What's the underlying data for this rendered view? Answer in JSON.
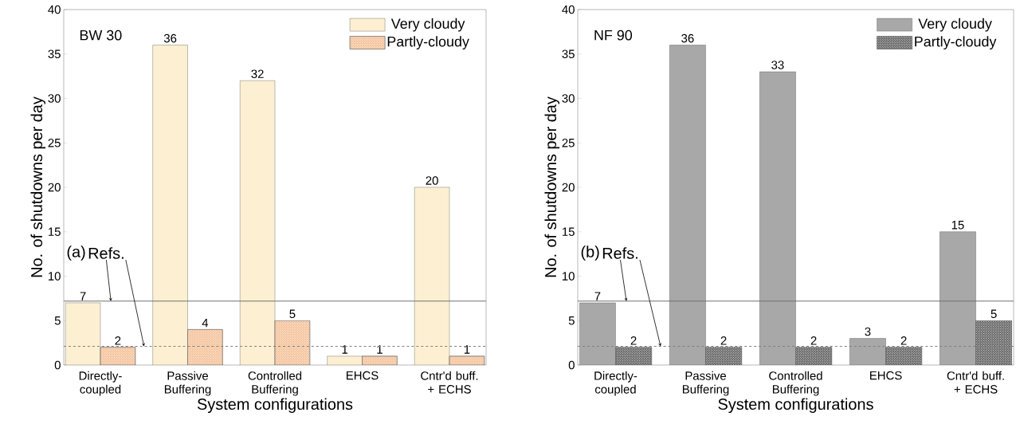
{
  "chart_data": [
    {
      "type": "bar",
      "xlabel": "System configurations",
      "ylabel": "No. of shutdowns per day",
      "categories": [
        "Directly-coupled",
        "Passive Buffering",
        "Controlled Buffering",
        "EHCS",
        "Cntr'd buff. + ECHS"
      ],
      "series": [
        {
          "name": "Very cloudy",
          "color": "#fdf0d2",
          "values": [
            7,
            36,
            32,
            1,
            20
          ]
        },
        {
          "name": "Partly-cloudy",
          "color": "#f5c6a0",
          "values": [
            2,
            4,
            5,
            1,
            1
          ]
        }
      ],
      "ylim": [
        0,
        40
      ],
      "yticks": [
        0,
        5,
        10,
        15,
        20,
        25,
        30,
        35,
        40
      ],
      "data_labels": true,
      "legend": "top right",
      "ref_lines": [
        {
          "axis": "y",
          "value": 7.2,
          "color": "#707070",
          "line_style": "solid"
        },
        {
          "axis": "y",
          "value": 2.1,
          "color": "#808080",
          "line_style": "dashed"
        }
      ],
      "annotations": [
        "BW 30",
        "(a)",
        {
          "text": "Refs.",
          "y": 7.2
        }
      ]
    },
    {
      "type": "bar",
      "xlabel": "System configurations",
      "ylabel": "No. of shutdowns per day",
      "categories": [
        "Directly-coupled",
        "Passive Buffering",
        "Controlled Buffering",
        "EHCS",
        "Cntr'd buff. + ECHS"
      ],
      "series": [
        {
          "name": "Very cloudy",
          "color": "#a8a8a8",
          "values": [
            7,
            36,
            33,
            3,
            15
          ]
        },
        {
          "name": "Partly-cloudy",
          "color": "#6e6e6e",
          "values": [
            2,
            2,
            2,
            2,
            5
          ]
        }
      ],
      "ylim": [
        0,
        40
      ],
      "yticks": [
        0,
        5,
        10,
        15,
        20,
        25,
        30,
        35,
        40
      ],
      "data_labels": true,
      "legend": "top right",
      "ref_lines": [
        {
          "axis": "y",
          "value": 7.2,
          "color": "#707070",
          "line_style": "solid"
        },
        {
          "axis": "y",
          "value": 2.1,
          "color": "#808080",
          "line_style": "dashed"
        }
      ],
      "annotations": [
        "NF 90",
        "(b)",
        {
          "text": "Refs.",
          "y": 7.2
        }
      ]
    }
  ]
}
